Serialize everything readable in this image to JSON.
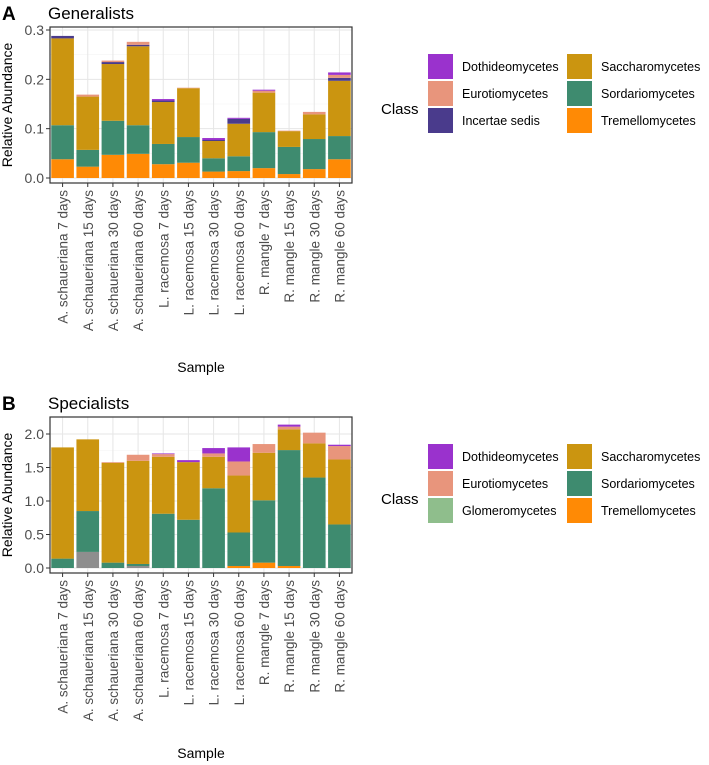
{
  "colors": {
    "Dothideomycetes": "#9a32cd",
    "Eurotiomycetes": "#e8957c",
    "Incertae sedis": "#4a3b8c",
    "Glomeromycetes": "#8fbe8c",
    "Saccharomycetes": "#cb9510",
    "Sordariomycetes": "#3e8b6f",
    "Tremellomycetes": "#ff8a05",
    "unlabeled": "#8e8e8e"
  },
  "chart_data": [
    {
      "type": "bar",
      "stacked": true,
      "panel_label": "A",
      "title": "Generalists",
      "xlabel": "Sample",
      "ylabel": "Relative Abundance",
      "ylim": [
        0,
        0.3
      ],
      "yticks": [
        "0.0",
        "0.1",
        "0.2",
        "0.3"
      ],
      "grid": true,
      "legend_title": "Class",
      "legend_position": "right",
      "legend": [
        "Dothideomycetes",
        "Eurotiomycetes",
        "Incertae sedis",
        "Saccharomycetes",
        "Sordariomycetes",
        "Tremellomycetes"
      ],
      "categories": [
        "A. schaueriana 7 days",
        "A. schaueriana 15 days",
        "A. schaueriana 30 days",
        "A. schaueriana 60 days",
        "L. racemosa 7 days",
        "L. racemosa 15 days",
        "L. racemosa 30 days",
        "L. racemosa 60 days",
        "R. mangle 7 days",
        "R. mangle 15 days",
        "R. mangle 30 days",
        "R. mangle 60 days"
      ],
      "series": [
        {
          "name": "Tremellomycetes",
          "values": [
            0.038,
            0.023,
            0.047,
            0.049,
            0.028,
            0.031,
            0.013,
            0.014,
            0.02,
            0.008,
            0.018,
            0.038
          ]
        },
        {
          "name": "Sordariomycetes",
          "values": [
            0.069,
            0.034,
            0.069,
            0.058,
            0.041,
            0.052,
            0.027,
            0.03,
            0.073,
            0.055,
            0.061,
            0.047
          ]
        },
        {
          "name": "Saccharomycetes",
          "values": [
            0.176,
            0.108,
            0.115,
            0.16,
            0.085,
            0.099,
            0.035,
            0.066,
            0.08,
            0.032,
            0.05,
            0.112
          ]
        },
        {
          "name": "Incertae sedis",
          "values": [
            0.005,
            0,
            0.004,
            0.003,
            0.003,
            0,
            0.002,
            0.01,
            0,
            0,
            0,
            0.006
          ]
        },
        {
          "name": "Eurotiomycetes",
          "values": [
            0,
            0.004,
            0.003,
            0.006,
            0,
            0.001,
            0,
            0,
            0.004,
            0.001,
            0.005,
            0.006
          ]
        },
        {
          "name": "Dothideomycetes",
          "values": [
            0,
            0,
            0,
            0,
            0.003,
            0,
            0.004,
            0.002,
            0.002,
            0,
            0,
            0.005
          ]
        }
      ]
    },
    {
      "type": "bar",
      "stacked": true,
      "panel_label": "B",
      "title": "Specialists",
      "xlabel": "Sample",
      "ylabel": "Relative Abundance",
      "ylim": [
        0,
        2.2
      ],
      "yticks": [
        "0.0",
        "0.5",
        "1.0",
        "1.5",
        "2.0"
      ],
      "grid": true,
      "legend_title": "Class",
      "legend_position": "right",
      "legend": [
        "Dothideomycetes",
        "Eurotiomycetes",
        "Glomeromycetes",
        "Saccharomycetes",
        "Sordariomycetes",
        "Tremellomycetes"
      ],
      "categories": [
        "A. schaueriana 7 days",
        "A. schaueriana 15 days",
        "A. schaueriana 30 days",
        "A. schaueriana 60 days",
        "L. racemosa 7 days",
        "L. racemosa 15 days",
        "L. racemosa 30 days",
        "L. racemosa 60 days",
        "R. mangle 7 days",
        "R. mangle 15 days",
        "R. mangle 30 days",
        "R. mangle 60 days"
      ],
      "series": [
        {
          "key": "unlabeled",
          "values": [
            0,
            0.24,
            0,
            0.03,
            0,
            0,
            0,
            0,
            0,
            0,
            0,
            0
          ]
        },
        {
          "name": "Tremellomycetes",
          "values": [
            0,
            0,
            0,
            0,
            0,
            0,
            0,
            0.03,
            0.08,
            0.03,
            0,
            0
          ]
        },
        {
          "name": "Sordariomycetes",
          "values": [
            0.14,
            0.61,
            0.08,
            0.03,
            0.81,
            0.72,
            1.19,
            0.5,
            0.93,
            1.73,
            1.35,
            0.65
          ]
        },
        {
          "name": "Saccharomycetes",
          "values": [
            1.66,
            1.07,
            1.49,
            1.54,
            0.85,
            0.86,
            0.47,
            0.85,
            0.71,
            0.31,
            0.51,
            0.97
          ]
        },
        {
          "name": "Eurotiomycetes",
          "values": [
            0,
            0,
            0.01,
            0.09,
            0.04,
            0,
            0.05,
            0.21,
            0.13,
            0.04,
            0.16,
            0.2
          ]
        },
        {
          "name": "Dothideomycetes",
          "values": [
            0,
            0,
            0,
            0,
            0.01,
            0.03,
            0.08,
            0.21,
            0,
            0.03,
            0,
            0.02
          ]
        }
      ]
    }
  ]
}
